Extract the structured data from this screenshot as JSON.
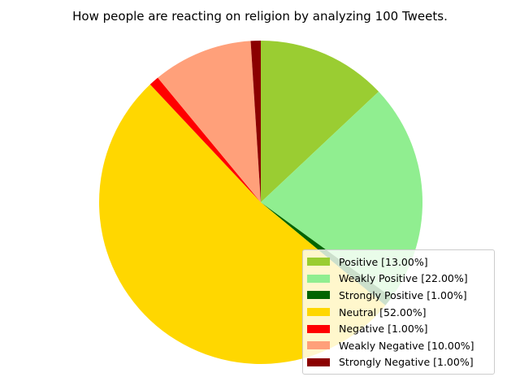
{
  "chart_data": {
    "type": "pie",
    "title": "How people are reacting on religion by analyzing 100 Tweets.",
    "start_angle_deg": 90,
    "direction": "clockwise",
    "legend_position": "lower-right",
    "slices": [
      {
        "label": "Positive [13.00%]",
        "value": 13,
        "color": "#9acd32"
      },
      {
        "label": "Weakly Positive [22.00%]",
        "value": 22,
        "color": "#90ee90"
      },
      {
        "label": "Strongly Positive [1.00%]",
        "value": 1,
        "color": "#006400"
      },
      {
        "label": "Neutral [52.00%]",
        "value": 52,
        "color": "#ffd700"
      },
      {
        "label": "Negative [1.00%]",
        "value": 1,
        "color": "#ff0000"
      },
      {
        "label": "Weakly Negative [10.00%]",
        "value": 10,
        "color": "#ffa07a"
      },
      {
        "label": "Strongly Negative [1.00%]",
        "value": 1,
        "color": "#8b0000"
      }
    ]
  }
}
